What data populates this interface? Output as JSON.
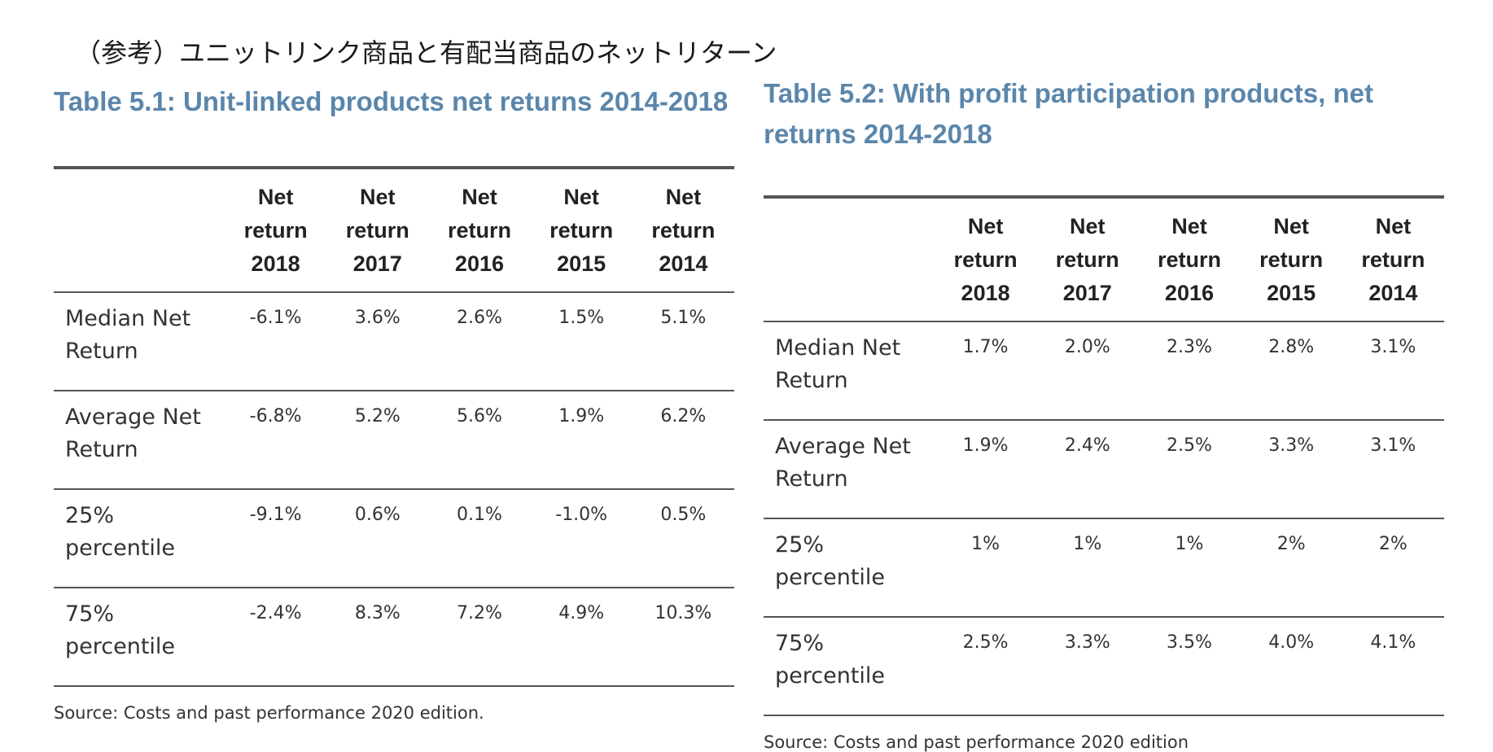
{
  "header_jp": "（参考）ユニットリンク商品と有配当商品のネットリターン",
  "columns": [
    {
      "line1": "Net",
      "line2": "return",
      "line3": "2018"
    },
    {
      "line1": "Net",
      "line2": "return",
      "line3": "2017"
    },
    {
      "line1": "Net",
      "line2": "return",
      "line3": "2016"
    },
    {
      "line1": "Net",
      "line2": "return",
      "line3": "2015"
    },
    {
      "line1": "Net",
      "line2": "return",
      "line3": "2014"
    }
  ],
  "table1": {
    "title": "Table 5.1: Unit-linked products net returns 2014-2018",
    "rows": [
      {
        "line1": "Median Net",
        "line2": "Return",
        "values": [
          "-6.1%",
          "3.6%",
          "2.6%",
          "1.5%",
          "5.1%"
        ]
      },
      {
        "line1": "Average Net",
        "line2": "Return",
        "values": [
          "-6.8%",
          "5.2%",
          "5.6%",
          "1.9%",
          "6.2%"
        ]
      },
      {
        "line1": "25%",
        "line2": "percentile",
        "values": [
          "-9.1%",
          "0.6%",
          "0.1%",
          "-1.0%",
          "0.5%"
        ]
      },
      {
        "line1": "75%",
        "line2": "percentile",
        "values": [
          "-2.4%",
          "8.3%",
          "7.2%",
          "4.9%",
          "10.3%"
        ]
      }
    ],
    "source": "Source: Costs and past performance 2020 edition."
  },
  "table2": {
    "title": "Table 5.2: With profit participation products, net returns 2014-2018",
    "rows": [
      {
        "line1": "Median Net",
        "line2": "Return",
        "values": [
          "1.7%",
          "2.0%",
          "2.3%",
          "2.8%",
          "3.1%"
        ]
      },
      {
        "line1": "Average Net",
        "line2": "Return",
        "values": [
          "1.9%",
          "2.4%",
          "2.5%",
          "3.3%",
          "3.1%"
        ]
      },
      {
        "line1": "25%",
        "line2": "percentile",
        "values": [
          "1%",
          "1%",
          "1%",
          "2%",
          "2%"
        ]
      },
      {
        "line1": "75%",
        "line2": "percentile",
        "values": [
          "2.5%",
          "3.3%",
          "3.5%",
          "4.0%",
          "4.1%"
        ]
      }
    ],
    "source": "Source: Costs and past performance 2020 edition"
  },
  "colors": {
    "title_blue": "#5b86ab",
    "rule": "#555555",
    "text": "#333333"
  }
}
